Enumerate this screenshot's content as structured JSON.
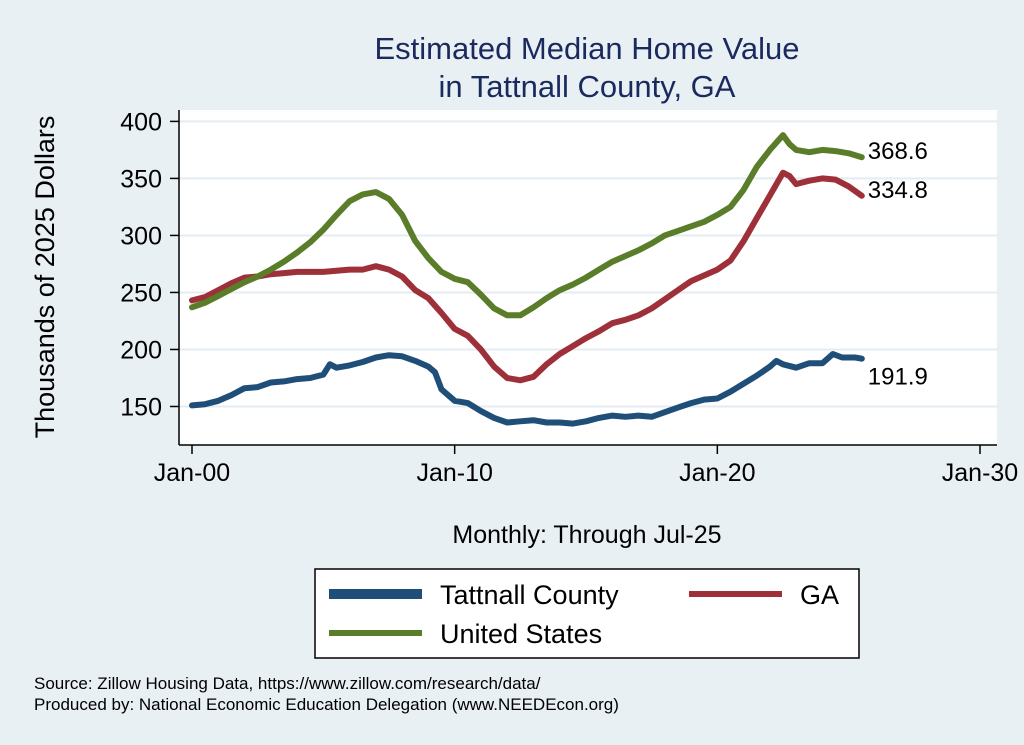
{
  "chart_data": {
    "type": "line",
    "title": [
      "Estimated Median Home Value",
      "in Tattnall County, GA"
    ],
    "ylabel": "Thousands of 2025 Dollars",
    "xlabel": "Monthly: Through Jul-25",
    "ylim": [
      125,
      410
    ],
    "xlim": [
      2000,
      2030
    ],
    "yticks": [
      150,
      200,
      250,
      300,
      350,
      400
    ],
    "xticks": [
      {
        "value": 2000,
        "label": "Jan-00"
      },
      {
        "value": 2010,
        "label": "Jan-10"
      },
      {
        "value": 2020,
        "label": "Jan-20"
      },
      {
        "value": 2030,
        "label": "Jan-30"
      }
    ],
    "grid": true,
    "legend_position": "bottom",
    "series": [
      {
        "name": "Tattnall County",
        "color": "#1f4e79",
        "end_label": "191.9",
        "points": [
          [
            2000.0,
            151
          ],
          [
            2000.5,
            152
          ],
          [
            2001.0,
            155
          ],
          [
            2001.5,
            160
          ],
          [
            2002.0,
            166
          ],
          [
            2002.5,
            167
          ],
          [
            2003.0,
            171
          ],
          [
            2003.5,
            172
          ],
          [
            2004.0,
            174
          ],
          [
            2004.5,
            175
          ],
          [
            2005.0,
            178
          ],
          [
            2005.25,
            187
          ],
          [
            2005.5,
            184
          ],
          [
            2006.0,
            186
          ],
          [
            2006.5,
            189
          ],
          [
            2007.0,
            193
          ],
          [
            2007.5,
            195
          ],
          [
            2008.0,
            194
          ],
          [
            2008.5,
            190
          ],
          [
            2009.0,
            185
          ],
          [
            2009.25,
            180
          ],
          [
            2009.5,
            165
          ],
          [
            2010.0,
            155
          ],
          [
            2010.5,
            153
          ],
          [
            2011.0,
            146
          ],
          [
            2011.5,
            140
          ],
          [
            2012.0,
            136
          ],
          [
            2012.5,
            137
          ],
          [
            2013.0,
            138
          ],
          [
            2013.5,
            136
          ],
          [
            2014.0,
            136
          ],
          [
            2014.5,
            135
          ],
          [
            2015.0,
            137
          ],
          [
            2015.5,
            140
          ],
          [
            2016.0,
            142
          ],
          [
            2016.5,
            141
          ],
          [
            2017.0,
            142
          ],
          [
            2017.5,
            141
          ],
          [
            2018.0,
            145
          ],
          [
            2018.5,
            149
          ],
          [
            2019.0,
            153
          ],
          [
            2019.5,
            156
          ],
          [
            2020.0,
            157
          ],
          [
            2020.5,
            163
          ],
          [
            2021.0,
            170
          ],
          [
            2021.5,
            177
          ],
          [
            2022.0,
            185
          ],
          [
            2022.25,
            190
          ],
          [
            2022.5,
            187
          ],
          [
            2023.0,
            184
          ],
          [
            2023.5,
            188
          ],
          [
            2024.0,
            188
          ],
          [
            2024.4,
            196
          ],
          [
            2024.75,
            193
          ],
          [
            2025.25,
            193
          ],
          [
            2025.5,
            191.9
          ]
        ]
      },
      {
        "name": "GA",
        "color": "#9e3039",
        "end_label": "334.8",
        "points": [
          [
            2000.0,
            243
          ],
          [
            2000.5,
            246
          ],
          [
            2001.0,
            252
          ],
          [
            2001.5,
            258
          ],
          [
            2002.0,
            263
          ],
          [
            2002.5,
            264
          ],
          [
            2003.0,
            266
          ],
          [
            2003.5,
            267
          ],
          [
            2004.0,
            268
          ],
          [
            2004.5,
            268
          ],
          [
            2005.0,
            268
          ],
          [
            2005.5,
            269
          ],
          [
            2006.0,
            270
          ],
          [
            2006.5,
            270
          ],
          [
            2007.0,
            273
          ],
          [
            2007.5,
            270
          ],
          [
            2008.0,
            264
          ],
          [
            2008.5,
            252
          ],
          [
            2009.0,
            245
          ],
          [
            2009.5,
            232
          ],
          [
            2010.0,
            218
          ],
          [
            2010.5,
            212
          ],
          [
            2011.0,
            200
          ],
          [
            2011.5,
            185
          ],
          [
            2012.0,
            175
          ],
          [
            2012.5,
            173
          ],
          [
            2013.0,
            176
          ],
          [
            2013.5,
            187
          ],
          [
            2014.0,
            196
          ],
          [
            2014.5,
            203
          ],
          [
            2015.0,
            210
          ],
          [
            2015.5,
            216
          ],
          [
            2016.0,
            223
          ],
          [
            2016.5,
            226
          ],
          [
            2017.0,
            230
          ],
          [
            2017.5,
            236
          ],
          [
            2018.0,
            244
          ],
          [
            2018.5,
            252
          ],
          [
            2019.0,
            260
          ],
          [
            2019.5,
            265
          ],
          [
            2020.0,
            270
          ],
          [
            2020.5,
            278
          ],
          [
            2021.0,
            295
          ],
          [
            2021.5,
            315
          ],
          [
            2022.0,
            335
          ],
          [
            2022.5,
            355
          ],
          [
            2022.75,
            352
          ],
          [
            2023.0,
            345
          ],
          [
            2023.5,
            348
          ],
          [
            2024.0,
            350
          ],
          [
            2024.5,
            349
          ],
          [
            2025.0,
            343
          ],
          [
            2025.5,
            334.8
          ]
        ]
      },
      {
        "name": "United States",
        "color": "#5a7d2a",
        "end_label": "368.6",
        "points": [
          [
            2000.0,
            237
          ],
          [
            2000.5,
            241
          ],
          [
            2001.0,
            247
          ],
          [
            2001.5,
            253
          ],
          [
            2002.0,
            259
          ],
          [
            2002.5,
            264
          ],
          [
            2003.0,
            270
          ],
          [
            2003.5,
            277
          ],
          [
            2004.0,
            285
          ],
          [
            2004.5,
            294
          ],
          [
            2005.0,
            305
          ],
          [
            2005.5,
            318
          ],
          [
            2006.0,
            330
          ],
          [
            2006.5,
            336
          ],
          [
            2007.0,
            338
          ],
          [
            2007.5,
            332
          ],
          [
            2008.0,
            318
          ],
          [
            2008.5,
            295
          ],
          [
            2009.0,
            280
          ],
          [
            2009.5,
            268
          ],
          [
            2010.0,
            262
          ],
          [
            2010.5,
            259
          ],
          [
            2011.0,
            248
          ],
          [
            2011.5,
            236
          ],
          [
            2012.0,
            230
          ],
          [
            2012.5,
            230
          ],
          [
            2013.0,
            237
          ],
          [
            2013.5,
            245
          ],
          [
            2014.0,
            252
          ],
          [
            2014.5,
            257
          ],
          [
            2015.0,
            263
          ],
          [
            2015.5,
            270
          ],
          [
            2016.0,
            277
          ],
          [
            2016.5,
            282
          ],
          [
            2017.0,
            287
          ],
          [
            2017.5,
            293
          ],
          [
            2018.0,
            300
          ],
          [
            2018.5,
            304
          ],
          [
            2019.0,
            308
          ],
          [
            2019.5,
            312
          ],
          [
            2020.0,
            318
          ],
          [
            2020.5,
            325
          ],
          [
            2021.0,
            340
          ],
          [
            2021.5,
            360
          ],
          [
            2022.0,
            375
          ],
          [
            2022.5,
            388
          ],
          [
            2022.75,
            380
          ],
          [
            2023.0,
            375
          ],
          [
            2023.5,
            373
          ],
          [
            2024.0,
            375
          ],
          [
            2024.5,
            374
          ],
          [
            2025.0,
            372
          ],
          [
            2025.5,
            368.6
          ]
        ]
      }
    ]
  },
  "source_lines": [
    "Source: Zillow Housing Data, https://www.zillow.com/research/data/",
    "Produced by: National Economic Education Delegation (www.NEEDEcon.org)"
  ]
}
